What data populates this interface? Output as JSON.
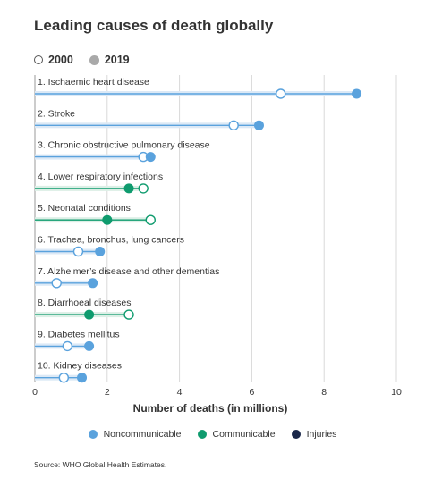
{
  "header": {
    "title": "Leading causes of death globally"
  },
  "year_legend": [
    {
      "label": "2000",
      "marker": "hollow-circle"
    },
    {
      "label": "2019",
      "marker": "filled-circle"
    }
  ],
  "colors": {
    "Noncommunicable": "#5aa2dd",
    "Communicable": "#0f9b6e",
    "Injuries": "#1a2749",
    "band_noncommunicable": "#dce9f6",
    "band_communicable": "#dcefe6",
    "grid": "#d9d9d9",
    "axis": "#999999"
  },
  "chart_data": {
    "type": "dumbbell",
    "title": "Leading causes of death globally",
    "xlabel": "Number of deaths (in millions)",
    "ylabel": "",
    "xlim": [
      0,
      10
    ],
    "xticks": [
      0,
      2,
      4,
      6,
      8,
      10
    ],
    "grid": "vertical",
    "series_names": [
      "2000",
      "2019"
    ],
    "categories": [
      {
        "label": "1. Ischaemic heart disease",
        "group": "Noncommunicable",
        "y2000": 6.8,
        "y2019": 8.9
      },
      {
        "label": "2. Stroke",
        "group": "Noncommunicable",
        "y2000": 5.5,
        "y2019": 6.2
      },
      {
        "label": "3. Chronic obstructive pulmonary disease",
        "group": "Noncommunicable",
        "y2000": 3.0,
        "y2019": 3.2
      },
      {
        "label": "4. Lower respiratory infections",
        "group": "Communicable",
        "y2000": 3.0,
        "y2019": 2.6
      },
      {
        "label": "5. Neonatal conditions",
        "group": "Communicable",
        "y2000": 3.2,
        "y2019": 2.0
      },
      {
        "label": "6. Trachea, bronchus, lung cancers",
        "group": "Noncommunicable",
        "y2000": 1.2,
        "y2019": 1.8
      },
      {
        "label": "7. Alzheimer’s disease and other dementias",
        "group": "Noncommunicable",
        "y2000": 0.6,
        "y2019": 1.6
      },
      {
        "label": "8. Diarrhoeal diseases",
        "group": "Communicable",
        "y2000": 2.6,
        "y2019": 1.5
      },
      {
        "label": "9. Diabetes mellitus",
        "group": "Noncommunicable",
        "y2000": 0.9,
        "y2019": 1.5
      },
      {
        "label": "10. Kidney diseases",
        "group": "Noncommunicable",
        "y2000": 0.8,
        "y2019": 1.3
      }
    ],
    "legend": [
      "Noncommunicable",
      "Communicable",
      "Injuries"
    ],
    "legend_placement": "bottom"
  },
  "footer": {
    "source": "Source: WHO Global Health Estimates."
  }
}
